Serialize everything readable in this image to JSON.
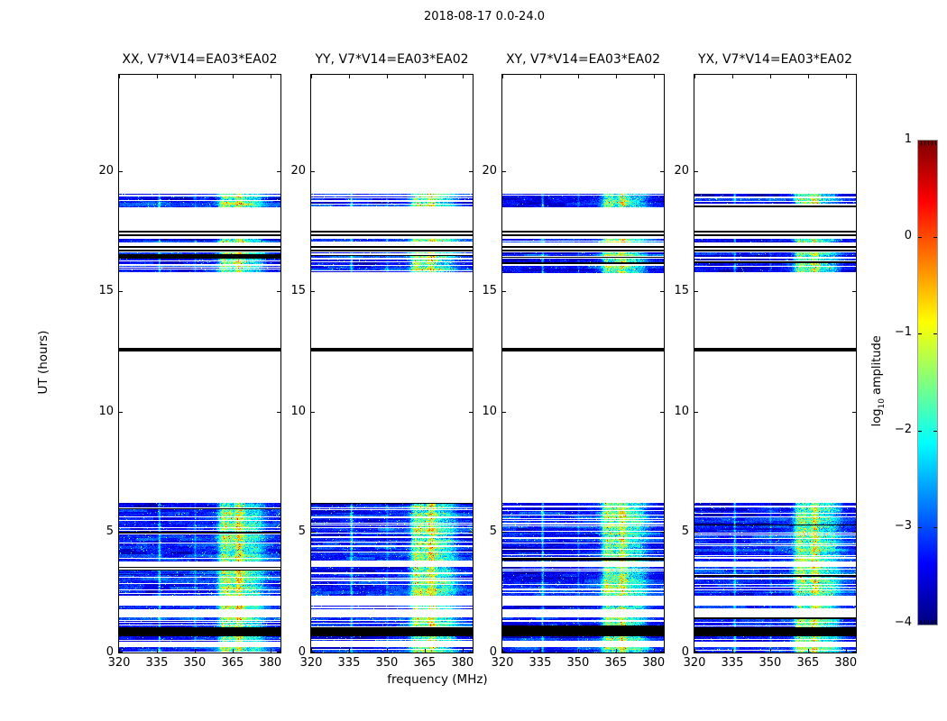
{
  "chart_data": {
    "type": "heatmap",
    "title": "2018-08-17 0.0-24.0",
    "xlabel": "frequency (MHz)",
    "ylabel": "UT (hours)",
    "xlim": [
      320,
      384
    ],
    "ylim": [
      0,
      24
    ],
    "xticks": [
      320,
      335,
      350,
      365,
      380
    ],
    "yticks": [
      0,
      5,
      10,
      15,
      20
    ],
    "grid": false,
    "panels": [
      {
        "title": "XX, V7*V14=EA03*EA02",
        "amp_scale": 1.0,
        "speckle": 0.02
      },
      {
        "title": "YY, V7*V14=EA03*EA02",
        "amp_scale": 1.0,
        "speckle": 0.02
      },
      {
        "title": "XY, V7*V14=EA03*EA02",
        "amp_scale": 0.95,
        "speckle": 0.013
      },
      {
        "title": "YX, V7*V14=EA03*EA02",
        "amp_scale": 0.95,
        "speckle": 0.013
      }
    ],
    "colorbar": {
      "cmap": "jet",
      "vmin": -4,
      "vmax": 1,
      "ticks": [
        1,
        0,
        -1,
        -2,
        -3,
        -4
      ],
      "label_prefix": "log",
      "label_sub": "10",
      "label_suffix": " amplitude"
    },
    "time_bands": [
      {
        "t0": 0.0,
        "t1": 0.22,
        "kind": "stripes",
        "fill": 0.9
      },
      {
        "t0": 0.45,
        "t1": 0.67,
        "kind": "stripes",
        "fill": 0.8
      },
      {
        "t0": 0.67,
        "t1": 1.05,
        "kind": "black"
      },
      {
        "t0": 1.05,
        "t1": 1.45,
        "kind": "stripes",
        "fill": 0.85
      },
      {
        "t0": 1.78,
        "t1": 1.95,
        "kind": "stripes",
        "fill": 0.55
      },
      {
        "t0": 2.35,
        "t1": 3.55,
        "kind": "stripes",
        "fill": 0.8
      },
      {
        "t0": 3.8,
        "t1": 6.2,
        "kind": "stripes",
        "fill": 0.82
      },
      {
        "t0": 12.5,
        "t1": 12.66,
        "kind": "blacklines"
      },
      {
        "t0": 15.75,
        "t1": 16.62,
        "kind": "stripes",
        "fill": 0.75
      },
      {
        "t0": 16.68,
        "t1": 16.88,
        "kind": "blacklines"
      },
      {
        "t0": 17.05,
        "t1": 17.2,
        "kind": "stripes",
        "fill": 0.9
      },
      {
        "t0": 17.3,
        "t1": 17.52,
        "kind": "blacklines"
      },
      {
        "t0": 18.5,
        "t1": 19.06,
        "kind": "stripes",
        "fill": 0.75
      }
    ],
    "rfi_peaks": [
      {
        "freq": 361.3,
        "sigma": 1.3,
        "amp": 1.9
      },
      {
        "freq": 363.8,
        "sigma": 1.0,
        "amp": 1.2
      },
      {
        "freq": 367.3,
        "sigma": 1.6,
        "amp": 2.1
      },
      {
        "freq": 371.5,
        "sigma": 2.5,
        "amp": 1.0
      },
      {
        "freq": 375.5,
        "sigma": 2.0,
        "amp": 0.6
      },
      {
        "freq": 368.0,
        "sigma": 9.0,
        "amp": 0.45
      },
      {
        "freq": 336.0,
        "sigma": 0.35,
        "amp": 1.25
      },
      {
        "freq": 350.2,
        "sigma": 0.3,
        "amp": 0.6
      }
    ],
    "colors": {
      "background": "#ffffff",
      "text": "#000000",
      "spine": "#000000",
      "flagged": "#000000",
      "cmap_low": "#000080",
      "cmap_high": "#800000"
    }
  }
}
